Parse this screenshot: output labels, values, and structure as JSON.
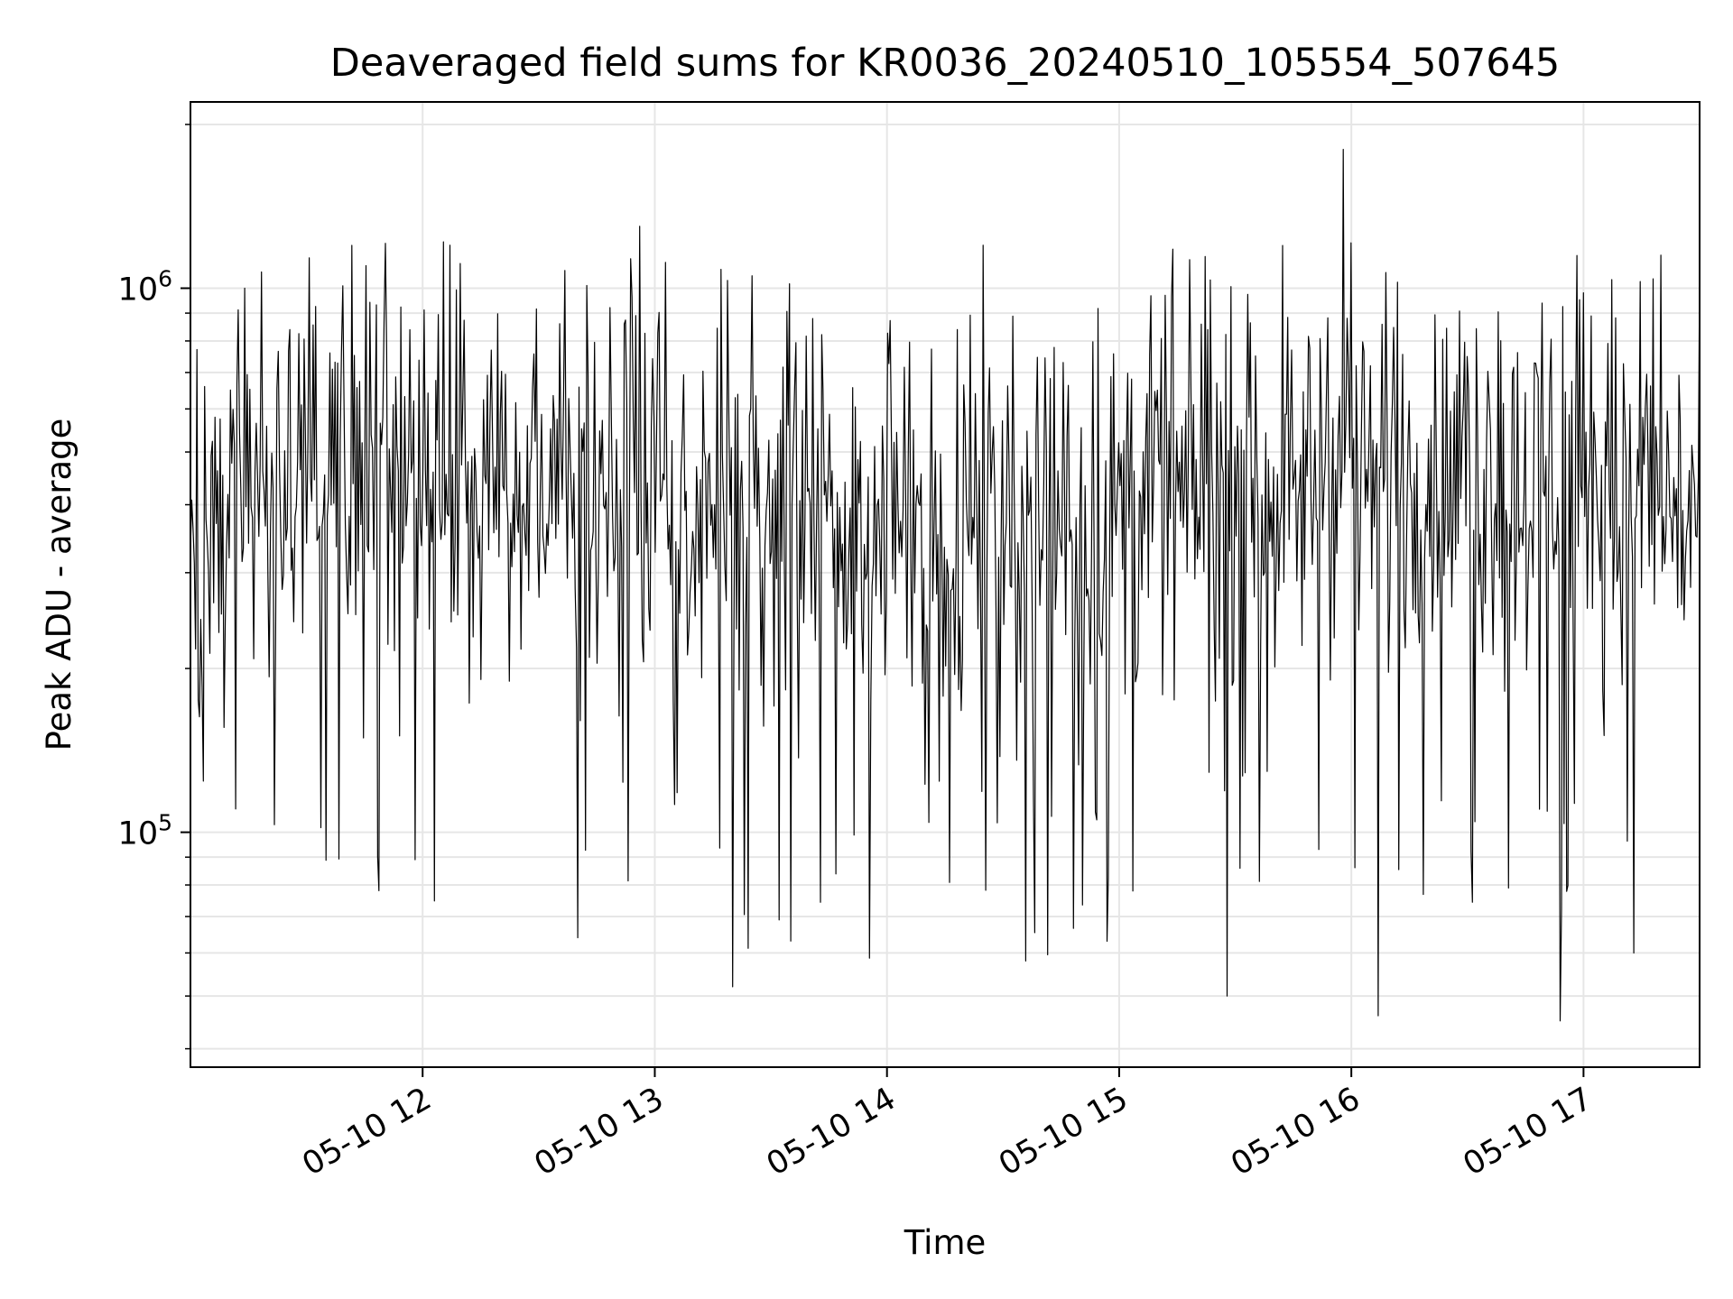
{
  "chart_data": {
    "type": "line",
    "title": "Deaveraged field sums for KR0036_20240510_105554_507645",
    "xlabel": "Time",
    "ylabel": "Peak ADU - average",
    "x_scale": "time",
    "y_scale": "log",
    "xlim": [
      "05-10 11:00",
      "05-10 17:30"
    ],
    "ylim": [
      37000,
      2200000
    ],
    "grid": true,
    "legend": "none",
    "line_color": "#000000",
    "grid_color": "#e6e6e6",
    "x_ticks": [
      "05-10 12",
      "05-10 13",
      "05-10 14",
      "05-10 15",
      "05-10 16",
      "05-10 17"
    ],
    "y_ticks": [
      {
        "value": 100000,
        "base": "10",
        "exp": "5"
      },
      {
        "value": 1000000,
        "base": "10",
        "exp": "6"
      }
    ],
    "series": [
      {
        "values_note": "~one reading every 20 s; dense noisy series around 4e5 with spikes down to ~4.5e4 and up to ~1.8e6",
        "typical_value": 400000,
        "min_value": 45000,
        "max_value": 1800000,
        "notable_points": [
          {
            "x": "05-10 11:14",
            "y": 1000000
          },
          {
            "x": "05-10 12:07",
            "y": 1200000
          },
          {
            "x": "05-10 12:40",
            "y": 64000
          },
          {
            "x": "05-10 12:56",
            "y": 1300000
          },
          {
            "x": "05-10 13:20",
            "y": 52000
          },
          {
            "x": "05-10 13:32",
            "y": 69000
          },
          {
            "x": "05-10 14:25",
            "y": 1200000
          },
          {
            "x": "05-10 14:36",
            "y": 58000
          },
          {
            "x": "05-10 15:14",
            "y": 1180000
          },
          {
            "x": "05-10 15:28",
            "y": 50000
          },
          {
            "x": "05-10 15:58",
            "y": 1800000
          },
          {
            "x": "05-10 16:07",
            "y": 46000
          },
          {
            "x": "05-10 16:54",
            "y": 45000
          },
          {
            "x": "05-10 17:13",
            "y": 60000
          },
          {
            "x": "05-10 17:20",
            "y": 1150000
          }
        ]
      }
    ]
  }
}
